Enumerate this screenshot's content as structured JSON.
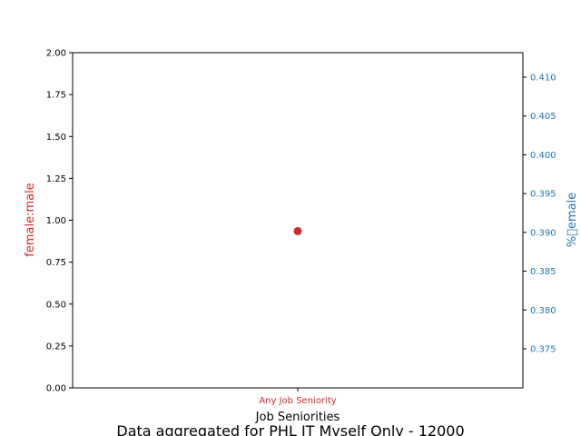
{
  "chart_data": {
    "type": "scatter",
    "title": "Data aggregated for PHL IT Myself Only - 12000",
    "xlabel": "Job Seniorities",
    "categories": [
      "Any Job Seniority"
    ],
    "y_left": {
      "label": "female:male",
      "ylim": [
        0,
        2
      ],
      "ticks": [
        "0.00",
        "0.25",
        "0.50",
        "0.75",
        "1.00",
        "1.25",
        "1.50",
        "1.75",
        "2.00"
      ],
      "color": "#d62728"
    },
    "y_right": {
      "label": "%\u0000emale",
      "ticks": [
        "0.375",
        "0.380",
        "0.385",
        "0.390",
        "0.395",
        "0.400",
        "0.405",
        "0.410"
      ],
      "color": "#1f77b4"
    },
    "series": [
      {
        "axis": "left",
        "values": [
          0.935
        ],
        "color": "#d62728"
      }
    ],
    "category_label_color": "#d62728",
    "grid": false
  }
}
